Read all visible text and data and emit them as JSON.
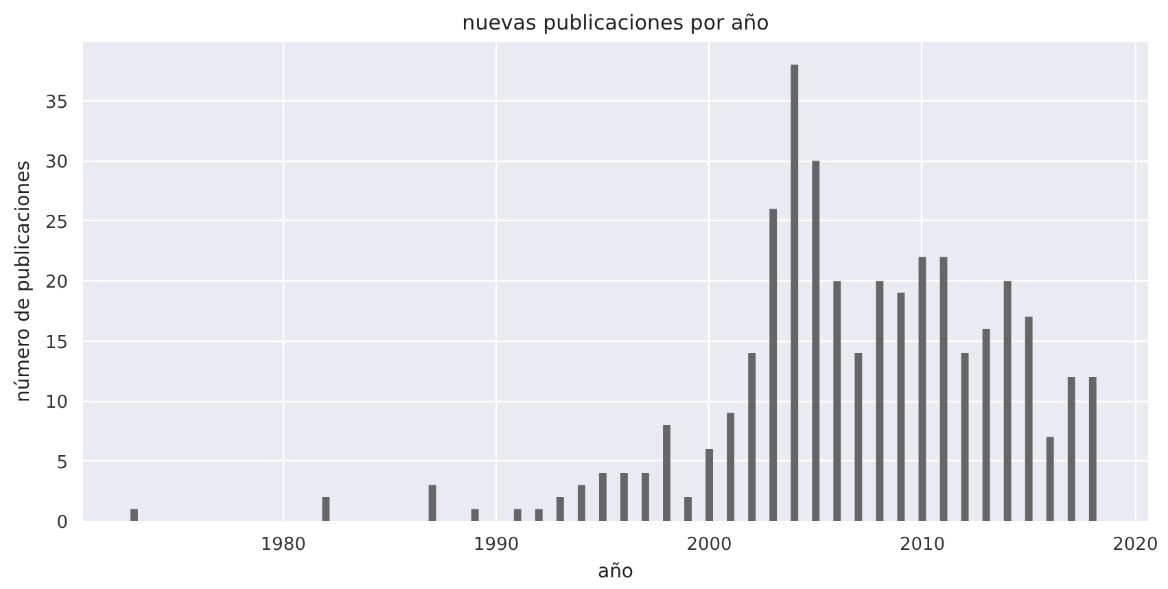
{
  "chart_data": {
    "type": "bar",
    "title": "nuevas publicaciones por año",
    "xlabel": "año",
    "ylabel": "número de publicaciones",
    "x": [
      1973,
      1982,
      1987,
      1989,
      1991,
      1992,
      1993,
      1994,
      1995,
      1996,
      1997,
      1998,
      1999,
      2000,
      2001,
      2002,
      2003,
      2004,
      2005,
      2006,
      2007,
      2008,
      2009,
      2010,
      2011,
      2012,
      2013,
      2014,
      2015,
      2016,
      2017,
      2018
    ],
    "values": [
      1,
      2,
      3,
      1,
      1,
      1,
      2,
      3,
      4,
      4,
      4,
      8,
      2,
      6,
      9,
      14,
      26,
      38,
      30,
      20,
      14,
      20,
      19,
      22,
      22,
      14,
      16,
      20,
      17,
      7,
      12,
      12
    ],
    "color": "#666666",
    "xlim": [
      1970.6,
      2020.6
    ],
    "xticks": [
      1980,
      1990,
      2000,
      2010,
      2020
    ],
    "ylim": [
      0,
      39.9
    ],
    "yticks": [
      0,
      5,
      10,
      15,
      20,
      25,
      30,
      35
    ],
    "grid": true
  }
}
